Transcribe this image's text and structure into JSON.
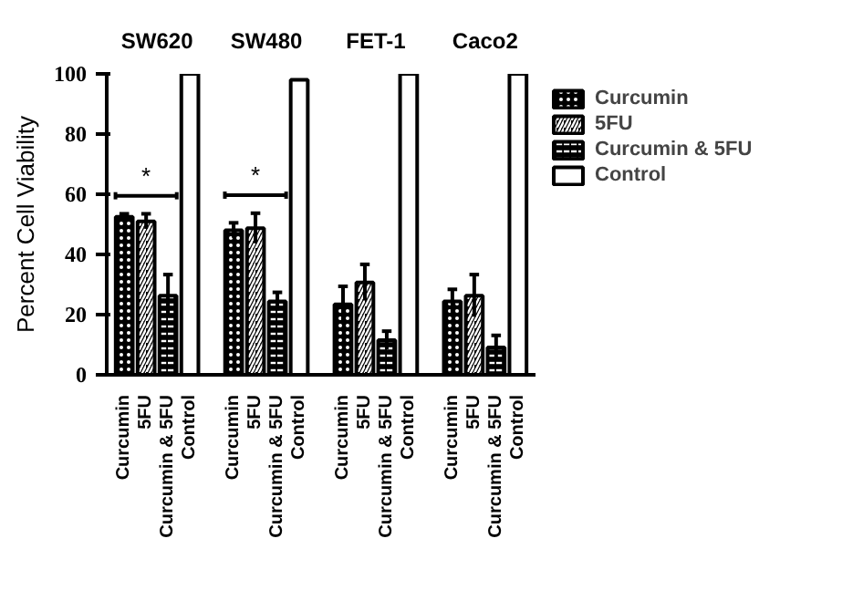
{
  "chart_data": {
    "type": "bar",
    "categories": [
      "SW620",
      "SW480",
      "FET-1",
      "Caco2"
    ],
    "ylabel": "Percent Cell Viability",
    "ylim": [
      0,
      100
    ],
    "yticks": [
      0,
      20,
      40,
      60,
      80,
      100
    ],
    "grid": false,
    "legend": "right",
    "series": [
      {
        "name": "Curcumin",
        "color": "#000000",
        "values": [
          52.5,
          48,
          23.4,
          24.4
        ],
        "errors": [
          1,
          2.5,
          6,
          4
        ]
      },
      {
        "name": "5FU",
        "color": "#000000",
        "values": [
          51,
          48.7,
          30.7,
          26.3
        ],
        "errors": [
          2.5,
          5,
          6,
          7
        ]
      },
      {
        "name": "Curcumin & 5FU",
        "color": "#000000",
        "values": [
          26.3,
          24.4,
          11.5,
          9.1
        ],
        "errors": [
          7,
          3,
          3,
          4
        ]
      },
      {
        "name": "Control",
        "color": "#ffffff",
        "values": [
          100,
          98,
          100,
          100
        ],
        "errors": [
          0,
          0,
          0,
          0
        ]
      }
    ],
    "annotations": [
      "*",
      "*"
    ]
  }
}
